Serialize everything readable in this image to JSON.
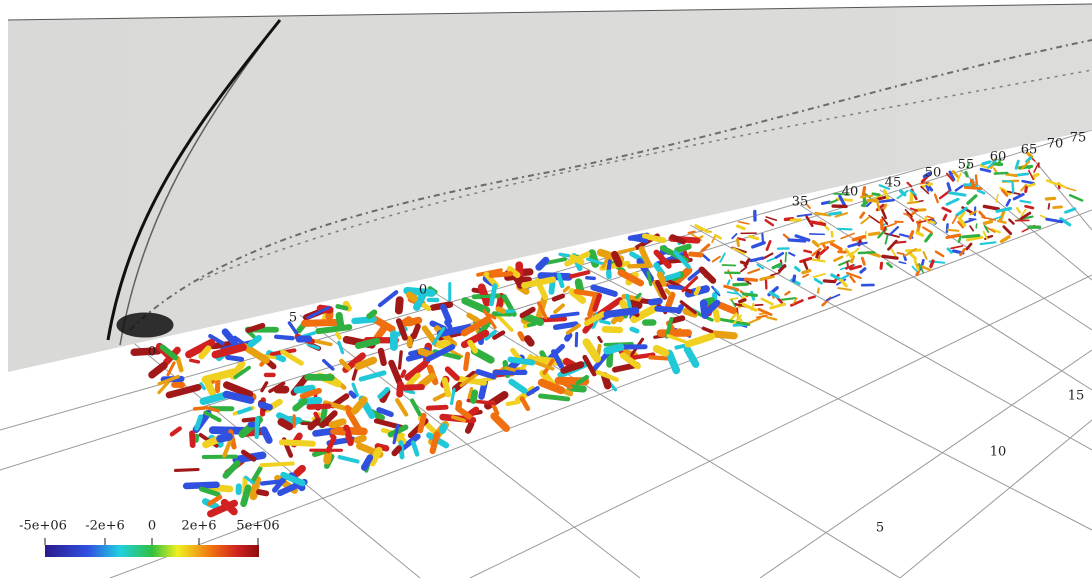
{
  "axes": {
    "wall_ticks": [
      "0",
      "5",
      "0"
    ],
    "far_ticks": [
      "35",
      "40",
      "45",
      "50",
      "55",
      "60",
      "65",
      "70",
      "75"
    ],
    "side_ticks": [
      "5",
      "10",
      "15"
    ]
  },
  "colorbar": {
    "labels": [
      "-5e+06",
      "-2e+6",
      "0",
      "2e+6",
      "5e+06"
    ]
  }
}
